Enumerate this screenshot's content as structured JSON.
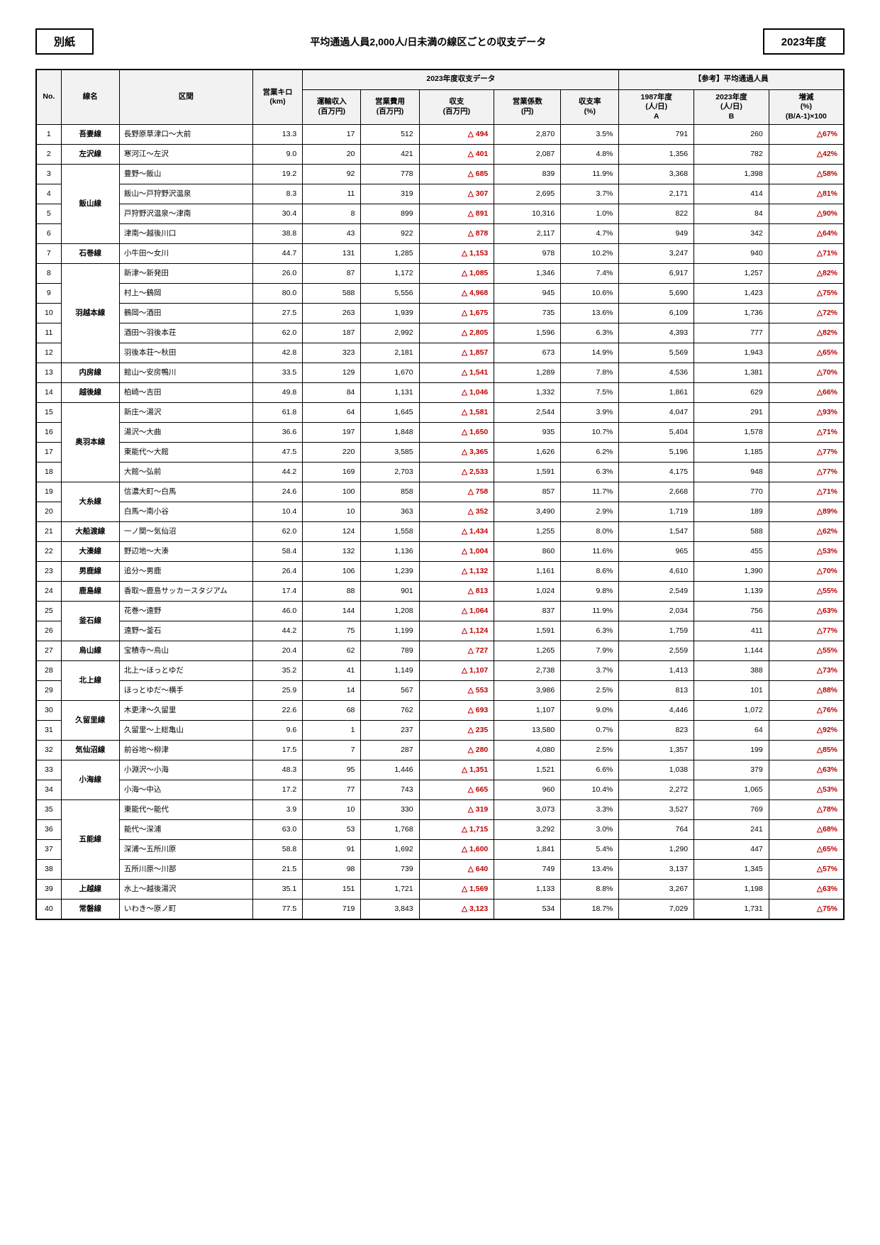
{
  "header": {
    "left_box": "別紙",
    "title": "平均通過人員2,000人/日未満の線区ごとの収支データ",
    "right_box": "2023年度"
  },
  "columns": {
    "no": "No.",
    "line": "線名",
    "section": "区間",
    "km": "営業キロ\n(km)",
    "fy_data": "2023年度収支データ",
    "ref_pass": "【参考】平均通過人員",
    "rev": "運輸収入\n(百万円)",
    "cost": "営業費用\n(百万円)",
    "bal": "収支\n(百万円)",
    "coef": "営業係数\n(円)",
    "rate": "収支率\n(%)",
    "p1987": "1987年度\n(人/日)\nA",
    "p2023": "2023年度\n(人/日)\nB",
    "chg": "増減\n(%)\n(B/A-1)×100"
  },
  "rows": [
    {
      "no": 1,
      "line": "吾妻線",
      "section": "長野原草津口～大前",
      "km": "13.3",
      "rev": "17",
      "cost": "512",
      "bal": "△ 494",
      "coef": "2,870",
      "rate": "3.5%",
      "p1987": "791",
      "p2023": "260",
      "chg": "△67%",
      "span": 1
    },
    {
      "no": 2,
      "line": "左沢線",
      "section": "寒河江～左沢",
      "km": "9.0",
      "rev": "20",
      "cost": "421",
      "bal": "△ 401",
      "coef": "2,087",
      "rate": "4.8%",
      "p1987": "1,356",
      "p2023": "782",
      "chg": "△42%",
      "span": 1
    },
    {
      "no": 3,
      "line": "飯山線",
      "section": "豊野～飯山",
      "km": "19.2",
      "rev": "92",
      "cost": "778",
      "bal": "△ 685",
      "coef": "839",
      "rate": "11.9%",
      "p1987": "3,368",
      "p2023": "1,398",
      "chg": "△58%",
      "span": 4
    },
    {
      "no": 4,
      "section": "飯山～戸狩野沢温泉",
      "km": "8.3",
      "rev": "11",
      "cost": "319",
      "bal": "△ 307",
      "coef": "2,695",
      "rate": "3.7%",
      "p1987": "2,171",
      "p2023": "414",
      "chg": "△81%"
    },
    {
      "no": 5,
      "section": "戸狩野沢温泉～津南",
      "km": "30.4",
      "rev": "8",
      "cost": "899",
      "bal": "△ 891",
      "coef": "10,316",
      "rate": "1.0%",
      "p1987": "822",
      "p2023": "84",
      "chg": "△90%"
    },
    {
      "no": 6,
      "section": "津南～越後川口",
      "km": "38.8",
      "rev": "43",
      "cost": "922",
      "bal": "△ 878",
      "coef": "2,117",
      "rate": "4.7%",
      "p1987": "949",
      "p2023": "342",
      "chg": "△64%"
    },
    {
      "no": 7,
      "line": "石巻線",
      "section": "小牛田～女川",
      "km": "44.7",
      "rev": "131",
      "cost": "1,285",
      "bal": "△ 1,153",
      "coef": "978",
      "rate": "10.2%",
      "p1987": "3,247",
      "p2023": "940",
      "chg": "△71%",
      "span": 1
    },
    {
      "no": 8,
      "line": "羽越本線",
      "section": "新津～新発田",
      "km": "26.0",
      "rev": "87",
      "cost": "1,172",
      "bal": "△ 1,085",
      "coef": "1,346",
      "rate": "7.4%",
      "p1987": "6,917",
      "p2023": "1,257",
      "chg": "△82%",
      "span": 5
    },
    {
      "no": 9,
      "section": "村上～鶴岡",
      "km": "80.0",
      "rev": "588",
      "cost": "5,556",
      "bal": "△ 4,968",
      "coef": "945",
      "rate": "10.6%",
      "p1987": "5,690",
      "p2023": "1,423",
      "chg": "△75%"
    },
    {
      "no": 10,
      "section": "鶴岡～酒田",
      "km": "27.5",
      "rev": "263",
      "cost": "1,939",
      "bal": "△ 1,675",
      "coef": "735",
      "rate": "13.6%",
      "p1987": "6,109",
      "p2023": "1,736",
      "chg": "△72%"
    },
    {
      "no": 11,
      "section": "酒田～羽後本荘",
      "km": "62.0",
      "rev": "187",
      "cost": "2,992",
      "bal": "△ 2,805",
      "coef": "1,596",
      "rate": "6.3%",
      "p1987": "4,393",
      "p2023": "777",
      "chg": "△82%"
    },
    {
      "no": 12,
      "section": "羽後本荘～秋田",
      "km": "42.8",
      "rev": "323",
      "cost": "2,181",
      "bal": "△ 1,857",
      "coef": "673",
      "rate": "14.9%",
      "p1987": "5,569",
      "p2023": "1,943",
      "chg": "△65%"
    },
    {
      "no": 13,
      "line": "内房線",
      "section": "館山～安房鴨川",
      "km": "33.5",
      "rev": "129",
      "cost": "1,670",
      "bal": "△ 1,541",
      "coef": "1,289",
      "rate": "7.8%",
      "p1987": "4,536",
      "p2023": "1,381",
      "chg": "△70%",
      "span": 1
    },
    {
      "no": 14,
      "line": "越後線",
      "section": "柏崎～吉田",
      "km": "49.8",
      "rev": "84",
      "cost": "1,131",
      "bal": "△ 1,046",
      "coef": "1,332",
      "rate": "7.5%",
      "p1987": "1,861",
      "p2023": "629",
      "chg": "△66%",
      "span": 1
    },
    {
      "no": 15,
      "line": "奥羽本線",
      "section": "新庄～湯沢",
      "km": "61.8",
      "rev": "64",
      "cost": "1,645",
      "bal": "△ 1,581",
      "coef": "2,544",
      "rate": "3.9%",
      "p1987": "4,047",
      "p2023": "291",
      "chg": "△93%",
      "span": 4
    },
    {
      "no": 16,
      "section": "湯沢～大曲",
      "km": "36.6",
      "rev": "197",
      "cost": "1,848",
      "bal": "△ 1,650",
      "coef": "935",
      "rate": "10.7%",
      "p1987": "5,404",
      "p2023": "1,578",
      "chg": "△71%"
    },
    {
      "no": 17,
      "section": "東能代～大館",
      "km": "47.5",
      "rev": "220",
      "cost": "3,585",
      "bal": "△ 3,365",
      "coef": "1,626",
      "rate": "6.2%",
      "p1987": "5,196",
      "p2023": "1,185",
      "chg": "△77%"
    },
    {
      "no": 18,
      "section": "大館～弘前",
      "km": "44.2",
      "rev": "169",
      "cost": "2,703",
      "bal": "△ 2,533",
      "coef": "1,591",
      "rate": "6.3%",
      "p1987": "4,175",
      "p2023": "948",
      "chg": "△77%"
    },
    {
      "no": 19,
      "line": "大糸線",
      "section": "信濃大町～白馬",
      "km": "24.6",
      "rev": "100",
      "cost": "858",
      "bal": "△ 758",
      "coef": "857",
      "rate": "11.7%",
      "p1987": "2,668",
      "p2023": "770",
      "chg": "△71%",
      "span": 2
    },
    {
      "no": 20,
      "section": "白馬～南小谷",
      "km": "10.4",
      "rev": "10",
      "cost": "363",
      "bal": "△ 352",
      "coef": "3,490",
      "rate": "2.9%",
      "p1987": "1,719",
      "p2023": "189",
      "chg": "△89%"
    },
    {
      "no": 21,
      "line": "大船渡線",
      "section": "一ノ関～気仙沼",
      "km": "62.0",
      "rev": "124",
      "cost": "1,558",
      "bal": "△ 1,434",
      "coef": "1,255",
      "rate": "8.0%",
      "p1987": "1,547",
      "p2023": "588",
      "chg": "△62%",
      "span": 1
    },
    {
      "no": 22,
      "line": "大湊線",
      "section": "野辺地～大湊",
      "km": "58.4",
      "rev": "132",
      "cost": "1,136",
      "bal": "△ 1,004",
      "coef": "860",
      "rate": "11.6%",
      "p1987": "965",
      "p2023": "455",
      "chg": "△53%",
      "span": 1
    },
    {
      "no": 23,
      "line": "男鹿線",
      "section": "追分～男鹿",
      "km": "26.4",
      "rev": "106",
      "cost": "1,239",
      "bal": "△ 1,132",
      "coef": "1,161",
      "rate": "8.6%",
      "p1987": "4,610",
      "p2023": "1,390",
      "chg": "△70%",
      "span": 1
    },
    {
      "no": 24,
      "line": "鹿島線",
      "section": "香取～鹿島サッカースタジアム",
      "km": "17.4",
      "rev": "88",
      "cost": "901",
      "bal": "△ 813",
      "coef": "1,024",
      "rate": "9.8%",
      "p1987": "2,549",
      "p2023": "1,139",
      "chg": "△55%",
      "span": 1
    },
    {
      "no": 25,
      "line": "釜石線",
      "section": "花巻～遠野",
      "km": "46.0",
      "rev": "144",
      "cost": "1,208",
      "bal": "△ 1,064",
      "coef": "837",
      "rate": "11.9%",
      "p1987": "2,034",
      "p2023": "756",
      "chg": "△63%",
      "span": 2
    },
    {
      "no": 26,
      "section": "遠野～釜石",
      "km": "44.2",
      "rev": "75",
      "cost": "1,199",
      "bal": "△ 1,124",
      "coef": "1,591",
      "rate": "6.3%",
      "p1987": "1,759",
      "p2023": "411",
      "chg": "△77%"
    },
    {
      "no": 27,
      "line": "烏山線",
      "section": "宝積寺～烏山",
      "km": "20.4",
      "rev": "62",
      "cost": "789",
      "bal": "△ 727",
      "coef": "1,265",
      "rate": "7.9%",
      "p1987": "2,559",
      "p2023": "1,144",
      "chg": "△55%",
      "span": 1
    },
    {
      "no": 28,
      "line": "北上線",
      "section": "北上～ほっとゆだ",
      "km": "35.2",
      "rev": "41",
      "cost": "1,149",
      "bal": "△ 1,107",
      "coef": "2,738",
      "rate": "3.7%",
      "p1987": "1,413",
      "p2023": "388",
      "chg": "△73%",
      "span": 2
    },
    {
      "no": 29,
      "section": "ほっとゆだ～横手",
      "km": "25.9",
      "rev": "14",
      "cost": "567",
      "bal": "△ 553",
      "coef": "3,986",
      "rate": "2.5%",
      "p1987": "813",
      "p2023": "101",
      "chg": "△88%"
    },
    {
      "no": 30,
      "line": "久留里線",
      "section": "木更津～久留里",
      "km": "22.6",
      "rev": "68",
      "cost": "762",
      "bal": "△ 693",
      "coef": "1,107",
      "rate": "9.0%",
      "p1987": "4,446",
      "p2023": "1,072",
      "chg": "△76%",
      "span": 2
    },
    {
      "no": 31,
      "section": "久留里～上総亀山",
      "km": "9.6",
      "rev": "1",
      "cost": "237",
      "bal": "△ 235",
      "coef": "13,580",
      "rate": "0.7%",
      "p1987": "823",
      "p2023": "64",
      "chg": "△92%"
    },
    {
      "no": 32,
      "line": "気仙沼線",
      "section": "前谷地～柳津",
      "km": "17.5",
      "rev": "7",
      "cost": "287",
      "bal": "△ 280",
      "coef": "4,080",
      "rate": "2.5%",
      "p1987": "1,357",
      "p2023": "199",
      "chg": "△85%",
      "span": 1
    },
    {
      "no": 33,
      "line": "小海線",
      "section": "小淵沢～小海",
      "km": "48.3",
      "rev": "95",
      "cost": "1,446",
      "bal": "△ 1,351",
      "coef": "1,521",
      "rate": "6.6%",
      "p1987": "1,038",
      "p2023": "379",
      "chg": "△63%",
      "span": 2
    },
    {
      "no": 34,
      "section": "小海～中込",
      "km": "17.2",
      "rev": "77",
      "cost": "743",
      "bal": "△ 665",
      "coef": "960",
      "rate": "10.4%",
      "p1987": "2,272",
      "p2023": "1,065",
      "chg": "△53%"
    },
    {
      "no": 35,
      "line": "五能線",
      "section": "東能代～能代",
      "km": "3.9",
      "rev": "10",
      "cost": "330",
      "bal": "△ 319",
      "coef": "3,073",
      "rate": "3.3%",
      "p1987": "3,527",
      "p2023": "769",
      "chg": "△78%",
      "span": 4
    },
    {
      "no": 36,
      "section": "能代～深浦",
      "km": "63.0",
      "rev": "53",
      "cost": "1,768",
      "bal": "△ 1,715",
      "coef": "3,292",
      "rate": "3.0%",
      "p1987": "764",
      "p2023": "241",
      "chg": "△68%"
    },
    {
      "no": 37,
      "section": "深浦～五所川原",
      "km": "58.8",
      "rev": "91",
      "cost": "1,692",
      "bal": "△ 1,600",
      "coef": "1,841",
      "rate": "5.4%",
      "p1987": "1,290",
      "p2023": "447",
      "chg": "△65%"
    },
    {
      "no": 38,
      "section": "五所川原～川部",
      "km": "21.5",
      "rev": "98",
      "cost": "739",
      "bal": "△ 640",
      "coef": "749",
      "rate": "13.4%",
      "p1987": "3,137",
      "p2023": "1,345",
      "chg": "△57%"
    },
    {
      "no": 39,
      "line": "上越線",
      "section": "水上～越後湯沢",
      "km": "35.1",
      "rev": "151",
      "cost": "1,721",
      "bal": "△ 1,569",
      "coef": "1,133",
      "rate": "8.8%",
      "p1987": "3,267",
      "p2023": "1,198",
      "chg": "△63%",
      "span": 1
    },
    {
      "no": 40,
      "line": "常磐線",
      "section": "いわき～原ノ町",
      "km": "77.5",
      "rev": "719",
      "cost": "3,843",
      "bal": "△ 3,123",
      "coef": "534",
      "rate": "18.7%",
      "p1987": "7,029",
      "p2023": "1,731",
      "chg": "△75%",
      "span": 1
    }
  ]
}
